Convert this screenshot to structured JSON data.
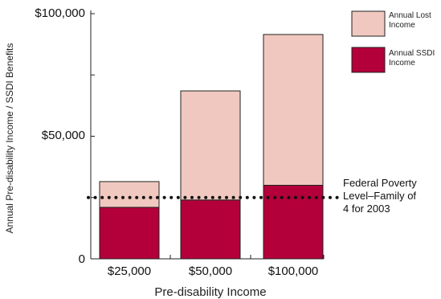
{
  "chart_data": {
    "type": "bar",
    "stacked": true,
    "categories": [
      "$25,000",
      "$50,000",
      "$100,000"
    ],
    "series": [
      {
        "name": "Annual SSDI Income",
        "color": "#b3003b",
        "values": [
          21000,
          24000,
          30000
        ]
      },
      {
        "name": "Annual Lost Income",
        "color": "#f0c8bf",
        "values": [
          10500,
          44500,
          61500
        ]
      }
    ],
    "xlabel": "Pre-disability Income",
    "ylabel": "Annual Pre-disability Income / SSDI Benefits",
    "ylim": [
      0,
      100000
    ],
    "yticks": [
      0,
      50000,
      100000
    ],
    "ytick_labels": [
      "0",
      "$50,000",
      "$100,000"
    ],
    "legend_position": "top-right",
    "reference_line": {
      "value": 25000,
      "style": "dotted",
      "label_lines": [
        "Federal Poverty",
        "Level–Family of",
        "4 for 2003"
      ]
    }
  }
}
